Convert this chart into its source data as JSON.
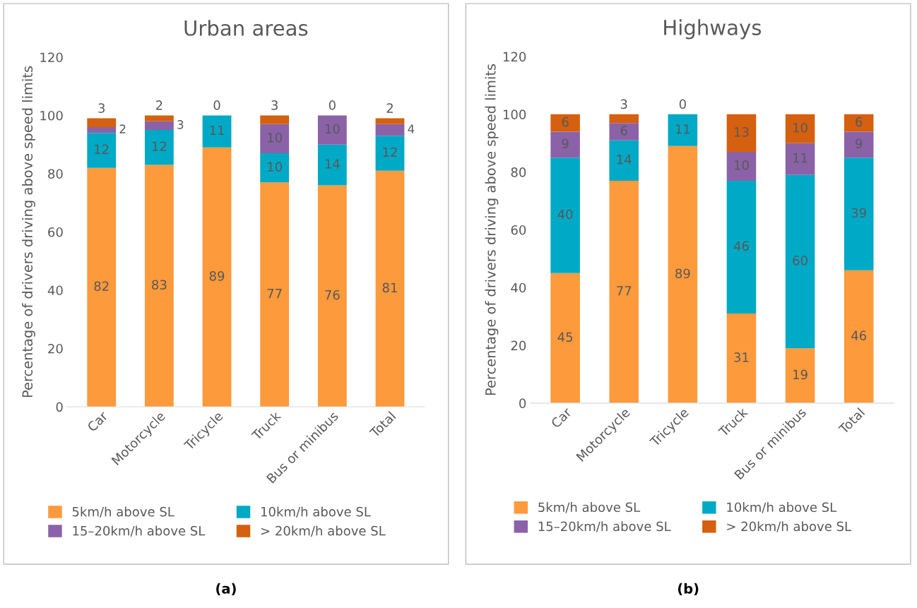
{
  "chart_data": [
    {
      "type": "bar",
      "stacked": true,
      "title": "Urban areas",
      "ylabel": "Percentage of drivers driving above speed limits",
      "categories": [
        "Car",
        "Motorcycle",
        "Tricycle",
        "Truck",
        "Bus or minibus",
        "Total"
      ],
      "series": [
        {
          "name": "5km/h above SL",
          "color": "#fd9a3c",
          "values": [
            82,
            83,
            89,
            77,
            76,
            81
          ]
        },
        {
          "name": "10km/h above SL",
          "color": "#00a9c6",
          "values": [
            12,
            12,
            11,
            10,
            14,
            12
          ]
        },
        {
          "name": "15–20km/h above SL",
          "color": "#8b62a8",
          "values": [
            2,
            3,
            0,
            10,
            10,
            4
          ],
          "value_labels": [
            "2",
            "3",
            null,
            "10",
            "10",
            "4"
          ]
        },
        {
          "name": "> 20km/h above SL",
          "color": "#d5600f",
          "values": [
            3,
            2,
            0,
            3,
            0,
            2
          ]
        }
      ],
      "ylim": [
        0,
        120
      ],
      "yticks": [
        0,
        20,
        40,
        60,
        80,
        100,
        120
      ],
      "data_labels": true,
      "legend": "bottom",
      "grid": false,
      "annotations": [
        "(a)"
      ]
    },
    {
      "type": "bar",
      "stacked": true,
      "title": "Highways",
      "ylabel": "Percentage of drivers driving above speed limits",
      "categories": [
        "Car",
        "Motorcycle",
        "Tricycle",
        "Truck",
        "Bus or minibus",
        "Total"
      ],
      "series": [
        {
          "name": "5km/h above SL",
          "color": "#fd9a3c",
          "values": [
            45,
            77,
            89,
            31,
            19,
            46
          ]
        },
        {
          "name": "10km/h above SL",
          "color": "#00a9c6",
          "values": [
            40,
            14,
            11,
            46,
            60,
            39
          ]
        },
        {
          "name": "15–20km/h above SL",
          "color": "#8b62a8",
          "values": [
            9,
            6,
            0,
            10,
            11,
            9
          ],
          "value_labels": [
            "9",
            "6",
            null,
            "10",
            "11",
            "9"
          ]
        },
        {
          "name": "> 20km/h above SL",
          "color": "#d5600f",
          "values": [
            6,
            3,
            0,
            13,
            10,
            6
          ]
        }
      ],
      "ylim": [
        0,
        120
      ],
      "yticks": [
        0,
        20,
        40,
        60,
        80,
        100,
        120
      ],
      "data_labels": true,
      "legend": "bottom",
      "grid": false,
      "annotations": [
        "(b)"
      ]
    }
  ]
}
